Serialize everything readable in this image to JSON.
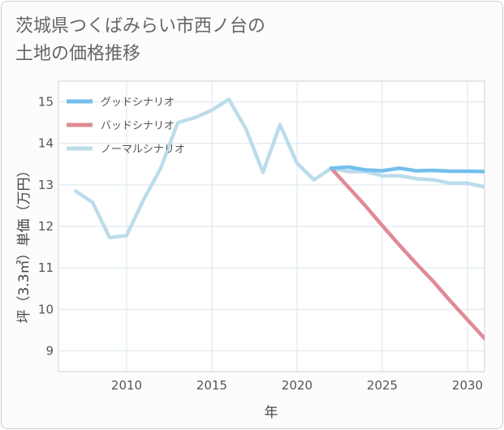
{
  "title_lines": [
    "茨城県つくばみらい市西ノ台の",
    "土地の価格推移"
  ],
  "chart_data": {
    "type": "line",
    "title": "茨城県つくばみらい市西ノ台の土地の価格推移",
    "xlabel": "年",
    "ylabel": "坪（3.3㎡）単価（万円）",
    "xlim": [
      2006,
      2031
    ],
    "ylim": [
      8.5,
      15.5
    ],
    "x_ticks": [
      2010,
      2015,
      2020,
      2025,
      2030
    ],
    "y_ticks": [
      9,
      10,
      11,
      12,
      13,
      14,
      15
    ],
    "grid": true,
    "legend_position": "top-left",
    "series": [
      {
        "name": "グッドシナリオ",
        "color": "#74bfee",
        "x": [
          2022,
          2023,
          2024,
          2025,
          2026,
          2027,
          2028,
          2029,
          2030,
          2031
        ],
        "values": [
          13.4,
          13.43,
          13.36,
          13.34,
          13.4,
          13.34,
          13.35,
          13.33,
          13.33,
          13.32
        ]
      },
      {
        "name": "バッドシナリオ",
        "color": "#df8a95",
        "x": [
          2022,
          2023,
          2024,
          2025,
          2026,
          2027,
          2028,
          2029,
          2030,
          2031
        ],
        "values": [
          13.4,
          12.95,
          12.5,
          12.02,
          11.55,
          11.1,
          10.67,
          10.2,
          9.75,
          9.3
        ]
      },
      {
        "name": "ノーマルシナリオ",
        "color": "#bcdceb",
        "x": [
          2007,
          2008,
          2009,
          2010,
          2011,
          2012,
          2013,
          2014,
          2015,
          2016,
          2017,
          2018,
          2019,
          2020,
          2021,
          2022,
          2023,
          2024,
          2025,
          2026,
          2027,
          2028,
          2029,
          2030,
          2031
        ],
        "values": [
          12.85,
          12.58,
          11.73,
          11.78,
          12.65,
          13.4,
          14.5,
          14.62,
          14.8,
          15.06,
          14.35,
          13.3,
          14.45,
          13.52,
          13.12,
          13.4,
          13.32,
          13.32,
          13.22,
          13.22,
          13.15,
          13.12,
          13.04,
          13.04,
          12.95
        ]
      }
    ]
  }
}
